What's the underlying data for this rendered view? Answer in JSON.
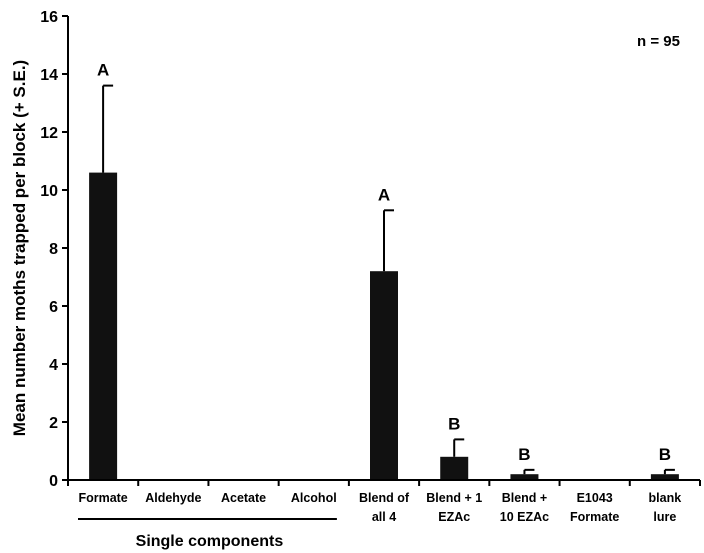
{
  "chart_data": {
    "type": "bar",
    "ylabel": "Mean number moths trapped per block (+ S.E.)",
    "ylim": [
      0,
      16
    ],
    "yticks": [
      0,
      2,
      4,
      6,
      8,
      10,
      12,
      14,
      16
    ],
    "annotation": "n = 95",
    "categories": [
      [
        "Formate"
      ],
      [
        "Aldehyde"
      ],
      [
        "Acetate"
      ],
      [
        "Alcohol"
      ],
      [
        "Blend of",
        "all 4"
      ],
      [
        "Blend + 1",
        "EZAc"
      ],
      [
        "Blend +",
        "10 EZAc"
      ],
      [
        "E1043",
        "Formate"
      ],
      [
        "blank",
        "lure"
      ]
    ],
    "values": [
      10.6,
      0,
      0,
      0,
      7.2,
      0.8,
      0.2,
      0,
      0.2
    ],
    "errors": [
      3.0,
      0,
      0,
      0,
      2.1,
      0.6,
      0.15,
      0,
      0.15
    ],
    "letters": [
      "A",
      "",
      "",
      "",
      "A",
      "B",
      "B",
      "",
      "B"
    ],
    "group": {
      "label": "Single components",
      "first_index": 0,
      "last_index": 3
    },
    "bar_color": "#111111"
  }
}
